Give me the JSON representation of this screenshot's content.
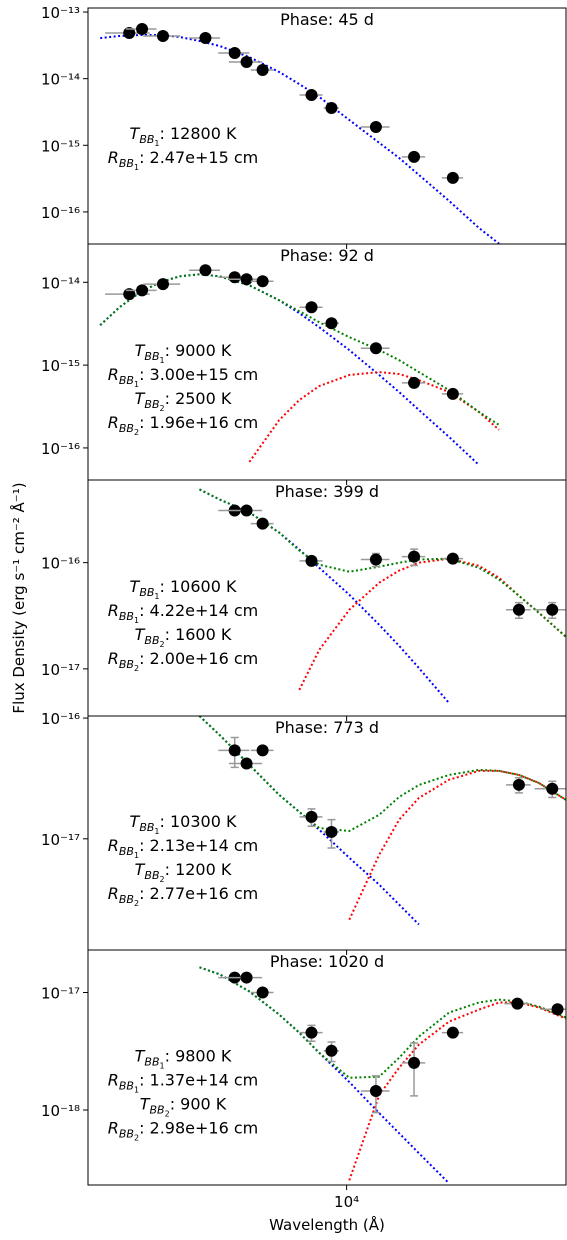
{
  "xlabel": "Wavelength (Å)",
  "ylabel": "Flux Density (erg s⁻¹ cm⁻² Å⁻¹)",
  "chart_data": [
    {
      "type": "scatter",
      "title": "Phase: 45 d",
      "log_x": true,
      "log_y": true,
      "xlim": [
        1500,
        50000
      ],
      "ylim": [
        3.3e-17,
        1.15e-13
      ],
      "yticks": [
        {
          "value": 1e-13,
          "label": "10⁻¹³"
        },
        {
          "value": 1e-14,
          "label": "10⁻¹⁴"
        },
        {
          "value": 1e-15,
          "label": "10⁻¹⁵"
        },
        {
          "value": 1e-16,
          "label": "10⁻¹⁶"
        }
      ],
      "x": [
        2030,
        2230,
        2600,
        3550,
        4400,
        4800,
        5400,
        7730,
        8950,
        12400,
        16400,
        21800
      ],
      "series": [
        {
          "color": "#000000",
          "values": [
            4.84e-14,
            5.56e-14,
            4.37e-14,
            4.07e-14,
            2.43e-14,
            1.78e-14,
            1.35e-14,
            5.69e-15,
            3.63e-15,
            1.88e-15,
            6.7e-16,
            3.24e-16
          ],
          "xerr": [
            330,
            250,
            350,
            400,
            500,
            580,
            450,
            650,
            500,
            1300,
            1400,
            1700
          ],
          "yerr": [
            null,
            null,
            null,
            null,
            null,
            null,
            null,
            null,
            null,
            null,
            null,
            null
          ]
        }
      ],
      "curves": {
        "x": [
          1640,
          1890,
          2200,
          2540,
          2940,
          3400,
          3940,
          4900,
          6100,
          7070,
          8180,
          10200,
          12700,
          14700,
          17000,
          21200,
          26400,
          30600,
          35400,
          41000,
          50000
        ],
        "series": [
          {
            "color": "#0000ff",
            "values": [
              4.07e-14,
              4.37e-14,
              4.52e-14,
              4.52e-14,
              4.22e-14,
              3.67e-14,
              3.09e-14,
              2.11e-14,
              1.26e-14,
              8.3e-15,
              5.32e-15,
              2.4e-15,
              1.09e-15,
              6.46e-16,
              3.6e-16,
              1.47e-16,
              5.75e-17,
              3.33e-17,
              null,
              null,
              null
            ]
          }
        ]
      },
      "annotations": [
        {
          "symbol": "T",
          "sub": "BB",
          "index": "1",
          "text": ": 12800 K"
        },
        {
          "symbol": "R",
          "sub": "BB",
          "index": "1",
          "text": ": 2.47e+15 cm"
        }
      ]
    },
    {
      "type": "scatter",
      "title": "Phase: 92 d",
      "log_x": true,
      "log_y": true,
      "xlim": [
        1500,
        50000
      ],
      "ylim": [
        4.1e-17,
        2.9e-14
      ],
      "yticks": [
        {
          "value": 1e-14,
          "label": "10⁻¹⁴"
        },
        {
          "value": 1e-15,
          "label": "10⁻¹⁵"
        },
        {
          "value": 1e-16,
          "label": "10⁻¹⁶"
        }
      ],
      "x": [
        2030,
        2230,
        2600,
        3550,
        4400,
        4800,
        5400,
        7730,
        8950,
        12400,
        16400,
        21800
      ],
      "series": [
        {
          "color": "#000000",
          "values": [
            7.2e-15,
            8e-15,
            9.5e-15,
            1.4e-14,
            1.15e-14,
            1.09e-14,
            1.03e-14,
            5e-15,
            3.2e-15,
            1.6e-15,
            6.1e-16,
            4.5e-16
          ],
          "xerr": [
            330,
            250,
            350,
            400,
            500,
            580,
            450,
            650,
            500,
            1300,
            1400,
            1700
          ],
          "yerr": [
            null,
            null,
            null,
            null,
            null,
            null,
            null,
            null,
            null,
            null,
            null,
            null
          ]
        }
      ],
      "curves": {
        "x": [
          1640,
          1890,
          2200,
          2540,
          2940,
          3400,
          3940,
          4900,
          6100,
          7070,
          8180,
          10200,
          12700,
          14700,
          17000,
          21200,
          26400,
          30600,
          35400,
          41000,
          50000
        ],
        "series": [
          {
            "color": "#0000ff",
            "values": [
              3.03e-15,
              5e-15,
              7.58e-15,
              1e-14,
              1.18e-14,
              1.25e-14,
              1.18e-14,
              9.2e-15,
              6.07e-15,
              4.24e-15,
              2.87e-15,
              1.52e-15,
              7.59e-16,
              4.73e-16,
              2.87e-16,
              1.36e-16,
              6.24e-17,
              null,
              null,
              null,
              null
            ]
          },
          {
            "color": "#ff0000",
            "values": [
              null,
              null,
              null,
              null,
              null,
              null,
              null,
              6.78e-17,
              2.17e-16,
              3.79e-16,
              5.58e-16,
              7.59e-16,
              8.24e-16,
              7.8e-16,
              6.59e-16,
              4.73e-16,
              2.72e-16,
              1.65e-16,
              null,
              null,
              null
            ]
          },
          {
            "color": "#008000",
            "values": [
              3.03e-15,
              5e-15,
              7.58e-15,
              1e-14,
              1.18e-14,
              1.25e-14,
              1.18e-14,
              9.2e-15,
              6.07e-15,
              4.48e-15,
              3.3e-15,
              2.17e-15,
              1.52e-15,
              1.15e-15,
              8.24e-16,
              5e-16,
              2.72e-16,
              1.89e-16,
              null,
              null,
              null
            ]
          }
        ]
      },
      "annotations": [
        {
          "symbol": "T",
          "sub": "BB",
          "index": "1",
          "text": ": 9000 K"
        },
        {
          "symbol": "R",
          "sub": "BB",
          "index": "1",
          "text": ": 3.00e+15 cm"
        },
        {
          "symbol": "T",
          "sub": "BB",
          "index": "2",
          "text": ": 2500 K"
        },
        {
          "symbol": "R",
          "sub": "BB",
          "index": "2",
          "text": ": 1.96e+16 cm"
        }
      ]
    },
    {
      "type": "scatter",
      "title": "Phase: 399 d",
      "log_x": true,
      "log_y": true,
      "xlim": [
        1500,
        50000
      ],
      "ylim": [
        3.6e-18,
        6e-16
      ],
      "yticks": [
        {
          "value": 1e-16,
          "label": "10⁻¹⁶"
        },
        {
          "value": 1e-17,
          "label": "10⁻¹⁷"
        }
      ],
      "x": [
        4400,
        4800,
        5400,
        7730,
        12400,
        16400,
        21800,
        35400,
        45200
      ],
      "series": [
        {
          "color": "#000000",
          "values": [
            3.1e-16,
            3.1e-16,
            2.33e-16,
            1.04e-16,
            1.07e-16,
            1.14e-16,
            1.09e-16,
            3.6e-17,
            3.6e-17
          ],
          "xerr": [
            500,
            580,
            450,
            650,
            1300,
            1400,
            1700,
            3200,
            5500
          ],
          "yerr": [
            null,
            null,
            null,
            null,
            1.5e-17,
            2e-17,
            null,
            6e-18,
            6e-18
          ]
        }
      ],
      "curves": {
        "x": [
          1640,
          1890,
          2200,
          2540,
          2940,
          3400,
          3940,
          4900,
          6100,
          7070,
          8180,
          10200,
          12700,
          14700,
          17000,
          21200,
          26400,
          30600,
          35400,
          41000,
          50000
        ],
        "series": [
          {
            "color": "#0000ff",
            "values": [
              null,
              null,
              null,
              null,
              null,
              4.89e-16,
              3.93e-16,
              2.97e-16,
              1.92e-16,
              1.33e-16,
              8.97e-17,
              4.99e-17,
              2.6e-17,
              1.65e-17,
              1.02e-17,
              4.77e-18,
              null,
              null,
              null,
              null,
              null
            ]
          },
          {
            "color": "#ff0000",
            "values": [
              null,
              null,
              null,
              null,
              null,
              null,
              null,
              null,
              null,
              6.34e-18,
              1.51e-17,
              3.6e-17,
              6.47e-17,
              8.41e-17,
              1e-16,
              1.09e-16,
              9.37e-17,
              7.21e-17,
              4.89e-17,
              3.37e-17,
              2e-17
            ]
          },
          {
            "color": "#008000",
            "values": [
              null,
              null,
              null,
              null,
              null,
              4.89e-16,
              3.93e-16,
              2.97e-16,
              1.92e-16,
              1.3e-16,
              9.57e-17,
              8.22e-17,
              9.17e-17,
              1e-16,
              1.07e-16,
              1.09e-16,
              8.97e-17,
              6.92e-17,
              4.89e-17,
              3.37e-17,
              2e-17
            ]
          }
        ]
      },
      "annotations": [
        {
          "symbol": "T",
          "sub": "BB",
          "index": "1",
          "text": ": 10600 K"
        },
        {
          "symbol": "R",
          "sub": "BB",
          "index": "1",
          "text": ": 4.22e+14 cm"
        },
        {
          "symbol": "T",
          "sub": "BB",
          "index": "2",
          "text": ": 1600 K"
        },
        {
          "symbol": "R",
          "sub": "BB",
          "index": "2",
          "text": ": 2.00e+16 cm"
        }
      ]
    },
    {
      "type": "scatter",
      "title": "Phase: 773 d",
      "log_x": true,
      "log_y": true,
      "xlim": [
        1500,
        50000
      ],
      "ylim": [
        1.2e-18,
        1.04e-16
      ],
      "yticks": [
        {
          "value": 1e-16,
          "label": "10⁻¹⁶"
        },
        {
          "value": 1e-17,
          "label": "10⁻¹⁷"
        }
      ],
      "x": [
        4400,
        4800,
        5400,
        7730,
        8950,
        35400,
        45200
      ],
      "series": [
        {
          "color": "#000000",
          "values": [
            5.4e-17,
            4.2e-17,
            5.4e-17,
            1.52e-17,
            1.14e-17,
            2.8e-17,
            2.6e-17
          ],
          "xerr": [
            500,
            580,
            450,
            650,
            500,
            3200,
            5500
          ],
          "yerr": [
            1.5e-17,
            null,
            null,
            2.5e-18,
            3e-18,
            4e-18,
            4e-18
          ]
        }
      ],
      "curves": {
        "x": [
          1640,
          1890,
          2200,
          2540,
          2940,
          3400,
          3940,
          4900,
          6100,
          7070,
          8180,
          10200,
          12700,
          14700,
          17000,
          21200,
          26400,
          30600,
          35400,
          41000,
          50000
        ],
        "series": [
          {
            "color": "#0000ff",
            "values": [
              null,
              null,
              null,
              null,
              null,
              1.04e-16,
              7.24e-17,
              4.09e-17,
              2.31e-17,
              1.67e-17,
              1.19e-17,
              6.96e-18,
              4.17e-18,
              2.85e-18,
              1.95e-18,
              null,
              null,
              null,
              null,
              null,
              null
            ]
          },
          {
            "color": "#ff0000",
            "values": [
              null,
              null,
              null,
              null,
              null,
              null,
              null,
              null,
              null,
              null,
              null,
              2.14e-18,
              7.38e-18,
              1.44e-17,
              2.18e-17,
              3.08e-17,
              3.65e-17,
              3.65e-17,
              3.38e-17,
              2.9e-17,
              2.1e-17
            ]
          },
          {
            "color": "#008000",
            "values": [
              null,
              null,
              null,
              null,
              null,
              1.04e-16,
              7.24e-17,
              4.09e-17,
              2.31e-17,
              1.67e-17,
              1.23e-17,
              1.16e-17,
              1.58e-17,
              2.22e-17,
              2.79e-17,
              3.38e-17,
              3.72e-17,
              3.65e-17,
              3.38e-17,
              2.9e-17,
              2.1e-17
            ]
          }
        ]
      },
      "annotations": [
        {
          "symbol": "T",
          "sub": "BB",
          "index": "1",
          "text": ": 10300 K"
        },
        {
          "symbol": "R",
          "sub": "BB",
          "index": "1",
          "text": ": 2.13e+14 cm"
        },
        {
          "symbol": "T",
          "sub": "BB",
          "index": "2",
          "text": ": 1200 K"
        },
        {
          "symbol": "R",
          "sub": "BB",
          "index": "2",
          "text": ": 2.77e+16 cm"
        }
      ]
    },
    {
      "type": "scatter",
      "title": "Phase: 1020 d",
      "log_x": true,
      "log_y": true,
      "xlim": [
        1500,
        50000
      ],
      "ylim": [
        2.3e-19,
        2.3e-17
      ],
      "yticks": [
        {
          "value": 1e-17,
          "label": "10⁻¹⁷"
        },
        {
          "value": 1e-18,
          "label": "10⁻¹⁸"
        }
      ],
      "xticks": [
        {
          "value": 10000,
          "label": "10⁴"
        }
      ],
      "x": [
        4400,
        4800,
        5400,
        7730,
        8950,
        12400,
        16400,
        21800,
        35000,
        47000
      ],
      "series": [
        {
          "color": "#000000",
          "values": [
            1.34e-17,
            1.34e-17,
            1e-17,
            4.55e-18,
            3.19e-18,
            1.45e-18,
            2.52e-18,
            4.55e-18,
            8.05e-18,
            7.2e-18
          ],
          "xerr": [
            500,
            580,
            450,
            650,
            500,
            1300,
            1400,
            1700,
            3200,
            5500
          ],
          "yerr": [
            null,
            null,
            null,
            7e-19,
            6e-19,
            5e-19,
            1.2e-18,
            null,
            null,
            null
          ]
        }
      ],
      "curves": {
        "x": [
          1640,
          1890,
          2200,
          2540,
          2940,
          3400,
          3940,
          4900,
          6100,
          7070,
          8180,
          10200,
          12700,
          14700,
          17000,
          21200,
          26400,
          30600,
          35400,
          41000,
          50000
        ],
        "series": [
          {
            "color": "#0000ff",
            "values": [
              null,
              null,
              null,
              null,
              null,
              1.64e-17,
              1.43e-17,
              1.02e-17,
              6.49e-18,
              4.55e-18,
              3.07e-18,
              1.73e-18,
              9.42e-19,
              6.35e-19,
              4.29e-19,
              2.38e-19,
              null,
              null,
              null,
              null,
              null
            ]
          },
          {
            "color": "#ff0000",
            "values": [
              null,
              null,
              null,
              null,
              null,
              null,
              null,
              null,
              null,
              null,
              null,
              2.52e-19,
              1.34e-18,
              2.29e-18,
              3.6e-18,
              5.65e-18,
              7.16e-18,
              8.22e-18,
              8.22e-18,
              7.45e-18,
              6e-18
            ]
          },
          {
            "color": "#008000",
            "values": [
              null,
              null,
              null,
              null,
              null,
              1.64e-17,
              1.43e-17,
              1.02e-17,
              6.49e-18,
              4.55e-18,
              3.07e-18,
              1.88e-18,
              1.92e-18,
              2.78e-18,
              4.21e-18,
              6.75e-18,
              8.22e-18,
              8.71e-18,
              8.38e-18,
              7.59e-18,
              6.11e-18
            ]
          }
        ]
      },
      "annotations": [
        {
          "symbol": "T",
          "sub": "BB",
          "index": "1",
          "text": ": 9800 K"
        },
        {
          "symbol": "R",
          "sub": "BB",
          "index": "1",
          "text": ": 1.37e+14 cm"
        },
        {
          "symbol": "T",
          "sub": "BB",
          "index": "2",
          "text": ": 900 K"
        },
        {
          "symbol": "R",
          "sub": "BB",
          "index": "2",
          "text": ": 2.98e+16 cm"
        }
      ]
    }
  ]
}
